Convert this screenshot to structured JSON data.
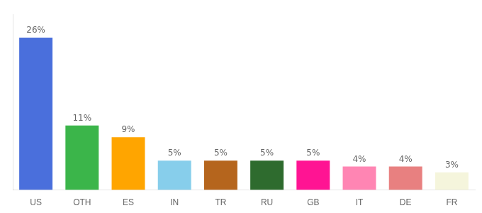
{
  "chart_data": {
    "type": "bar",
    "categories": [
      "US",
      "OTH",
      "ES",
      "IN",
      "TR",
      "RU",
      "GB",
      "IT",
      "DE",
      "FR"
    ],
    "values": [
      26,
      11,
      9,
      5,
      5,
      5,
      5,
      4,
      4,
      3
    ],
    "value_labels": [
      "26%",
      "11%",
      "9%",
      "5%",
      "5%",
      "5%",
      "5%",
      "4%",
      "4%",
      "3%"
    ],
    "colors": [
      "#4a6fdc",
      "#3bb54a",
      "#ffa500",
      "#87ceeb",
      "#b5651d",
      "#2e6b2e",
      "#ff1493",
      "#ff85b3",
      "#e88080",
      "#f5f5dc"
    ],
    "ylim": [
      0,
      30
    ],
    "data_labels": true,
    "tick_labels": "x",
    "grid": false
  }
}
